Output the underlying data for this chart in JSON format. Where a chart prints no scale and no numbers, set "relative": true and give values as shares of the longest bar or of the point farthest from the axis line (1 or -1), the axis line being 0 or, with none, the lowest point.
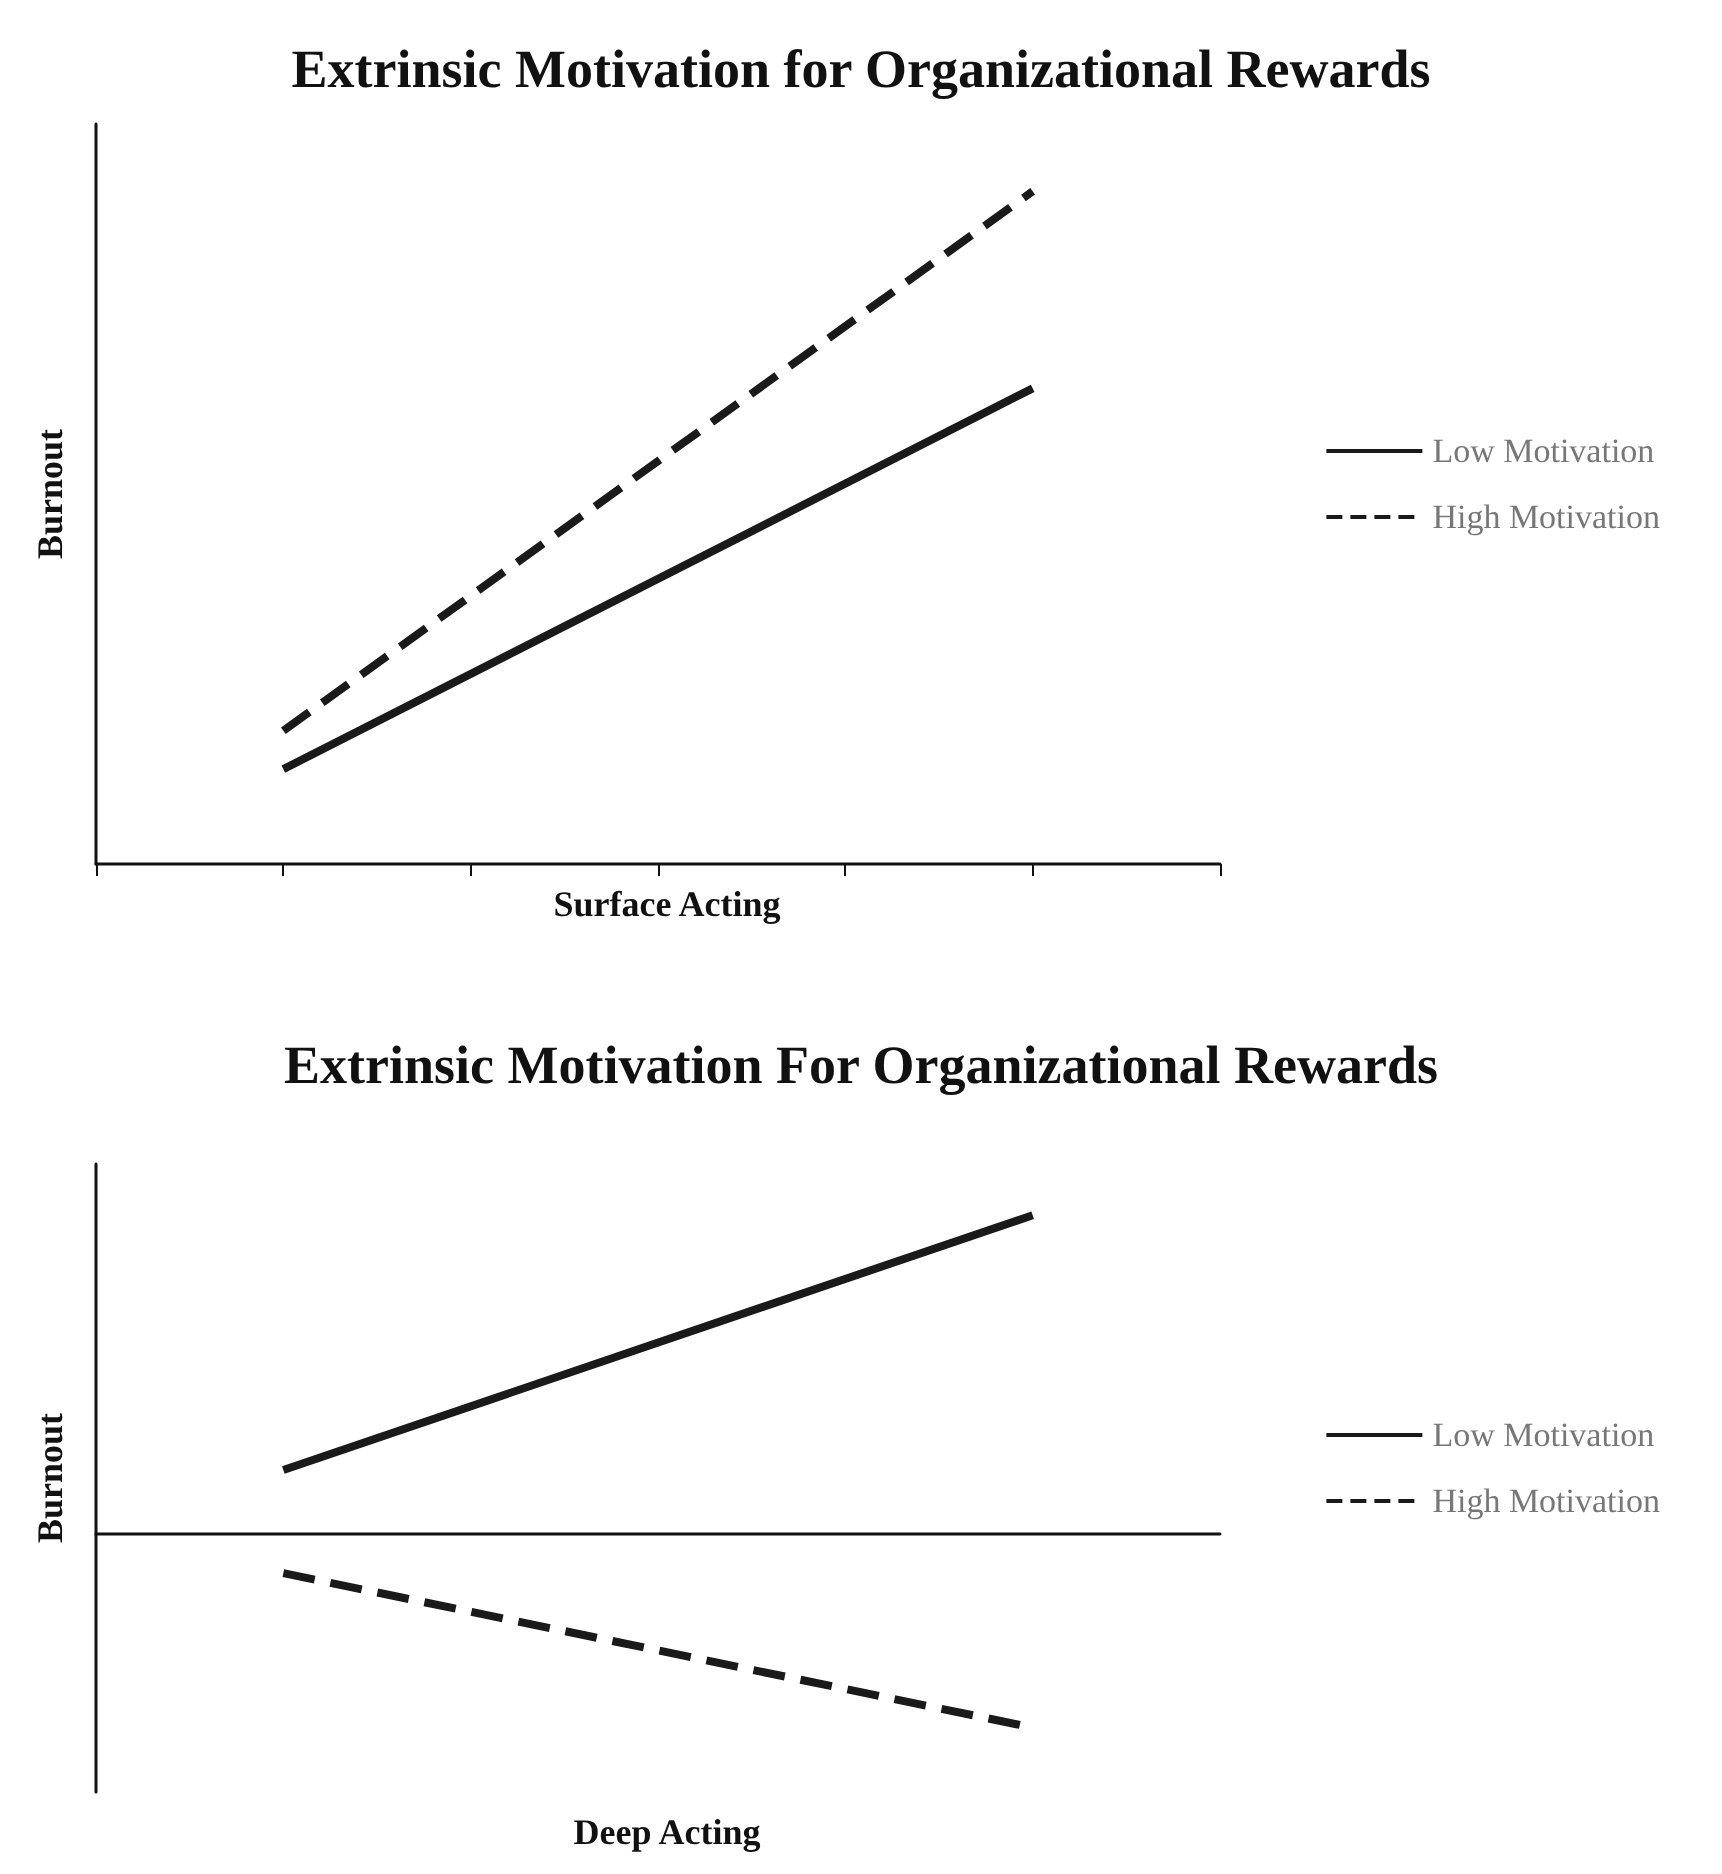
{
  "chart_data": [
    {
      "type": "line",
      "title": "Extrinsic Motivation for Organizational Rewards",
      "xlabel": "Surface Acting",
      "ylabel": "Burnout",
      "categories": [
        null,
        null,
        null,
        null,
        null,
        null,
        null
      ],
      "relative": true,
      "legend": "right",
      "marker": "none",
      "series": [
        {
          "name": "Low Motivation",
          "color": "#1a1a1a",
          "line_style": "solid",
          "values": [
            null,
            0.141,
            null,
            null,
            null,
            0.707,
            null
          ]
        },
        {
          "name": "High Motivation",
          "color": "#1a1a1a",
          "line_style": "dashed",
          "values": [
            null,
            0.198,
            null,
            null,
            null,
            1,
            null
          ]
        }
      ]
    },
    {
      "type": "line",
      "title": "Extrinsic Motivation For Organizational Rewards",
      "xlabel": "Deep Acting",
      "ylabel": "Burnout",
      "categories": [
        null,
        null,
        null,
        null,
        null,
        null,
        null
      ],
      "relative": true,
      "legend": "right",
      "marker": "none",
      "series": [
        {
          "name": "Low Motivation",
          "color": "#1a1a1a",
          "line_style": "solid",
          "values": [
            null,
            0.2,
            null,
            null,
            null,
            1,
            null
          ]
        },
        {
          "name": "High Motivation",
          "color": "#1a1a1a",
          "line_style": "dashed",
          "values": [
            null,
            -0.124,
            null,
            null,
            null,
            -0.609,
            null
          ]
        }
      ]
    }
  ]
}
